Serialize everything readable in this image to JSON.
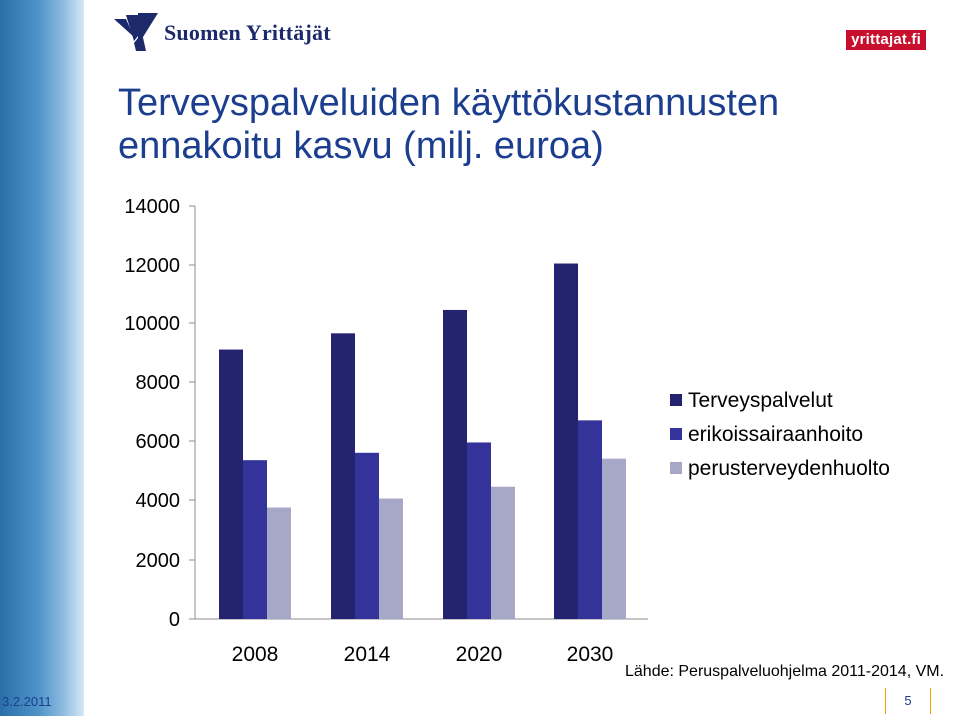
{
  "header": {
    "logo_text": "Suomen Yrittäjät",
    "badge_text": "yrittajat.fi"
  },
  "colors": {
    "sidebar": "#3f86bf",
    "title": "#1c3e8f",
    "badge": "#c8102e",
    "page_divider": "#f3a100"
  },
  "footer": {
    "source": "Lähde:  Peruspalveluohjelma 2011-2014, VM.",
    "date": "3.2.2011",
    "page_number": "5"
  },
  "chart_data": {
    "type": "bar",
    "title": "Terveyspalveluiden  käyttökustannusten ennakoitu kasvu (milj. euroa)",
    "categories": [
      "2008",
      "2014",
      "2020",
      "2030"
    ],
    "series": [
      {
        "name": "Terveyspalvelut",
        "color": "#24236f",
        "values": [
          9100,
          9650,
          10450,
          12050
        ]
      },
      {
        "name": "erikoissairaanhoito",
        "color": "#33339a",
        "values": [
          5350,
          5600,
          5950,
          6700
        ]
      },
      {
        "name": "perusterveydenhuolto",
        "color": "#a7a7c8",
        "values": [
          3750,
          4050,
          4450,
          5400
        ]
      }
    ],
    "y_ticks": [
      "0",
      "2000",
      "4000",
      "6000",
      "8000",
      "10000",
      "12000",
      "14000"
    ],
    "ylim": [
      0,
      14000
    ],
    "grid": false,
    "legend_position": "right"
  }
}
